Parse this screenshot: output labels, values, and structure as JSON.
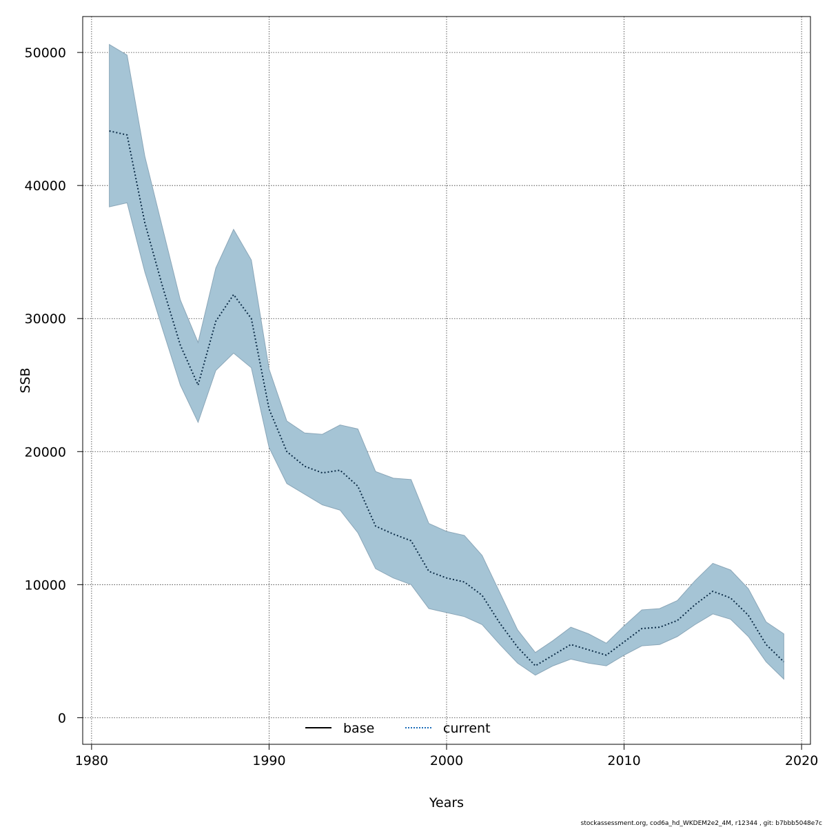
{
  "chart_data": {
    "type": "line",
    "title": "",
    "xlabel": "Years",
    "ylabel": "SSB",
    "xlim": [
      1979.5,
      2020.5
    ],
    "ylim": [
      -2000,
      52700
    ],
    "x_ticks": [
      1980,
      1990,
      2000,
      2010,
      2020
    ],
    "y_ticks": [
      0,
      10000,
      20000,
      30000,
      40000,
      50000
    ],
    "x_tick_labels": [
      "1980",
      "1990",
      "2000",
      "2010",
      "2020"
    ],
    "y_tick_labels": [
      "0",
      "10000",
      "20000",
      "30000",
      "40000",
      "50000"
    ],
    "grid": true,
    "legend_position": "bottom-center",
    "band_color": "#a5c4d5",
    "band_edge_color": "#8aa6b8",
    "years": [
      1981,
      1982,
      1983,
      1984,
      1985,
      1986,
      1987,
      1988,
      1989,
      1990,
      1991,
      1992,
      1993,
      1994,
      1995,
      1996,
      1997,
      1998,
      1999,
      2000,
      2001,
      2002,
      2003,
      2004,
      2005,
      2006,
      2007,
      2008,
      2009,
      2010,
      2011,
      2012,
      2013,
      2014,
      2015,
      2016,
      2017,
      2018,
      2019
    ],
    "band": {
      "upper": [
        50600,
        49800,
        42200,
        36800,
        31400,
        28200,
        33800,
        36700,
        34400,
        26200,
        22300,
        21400,
        21300,
        22000,
        21700,
        18500,
        18000,
        17900,
        14600,
        14000,
        13700,
        12200,
        9400,
        6600,
        4900,
        5800,
        6800,
        6300,
        5600,
        6900,
        8100,
        8200,
        8800,
        10300,
        11600,
        11100,
        9700,
        7200,
        6300
      ],
      "lower": [
        38400,
        38700,
        33500,
        29200,
        25000,
        22200,
        26100,
        27400,
        26300,
        20300,
        17600,
        16800,
        16000,
        15600,
        13900,
        11200,
        10500,
        10000,
        8200,
        7900,
        7600,
        7000,
        5500,
        4100,
        3200,
        3900,
        4400,
        4100,
        3900,
        4700,
        5400,
        5500,
        6100,
        7000,
        7800,
        7400,
        6100,
        4200,
        2900
      ]
    },
    "series": [
      {
        "name": "base",
        "color": "#000000",
        "dash": "solid",
        "values": [
          44100,
          43800,
          37200,
          32400,
          28000,
          25000,
          29800,
          31800,
          30000,
          23200,
          20000,
          18900,
          18400,
          18600,
          17400,
          14400,
          13800,
          13300,
          11000,
          10500,
          10200,
          9200,
          7100,
          5300,
          3900,
          4700,
          5500,
          5100,
          4700,
          5700,
          6700,
          6800,
          7300,
          8500,
          9500,
          9000,
          7700,
          5500,
          4200
        ]
      },
      {
        "name": "current",
        "color": "#1a6bb8",
        "dash": "dotted",
        "values": [
          44100,
          43800,
          37200,
          32400,
          28000,
          25000,
          29800,
          31800,
          30000,
          23200,
          20000,
          18900,
          18400,
          18600,
          17400,
          14400,
          13800,
          13300,
          11000,
          10500,
          10200,
          9200,
          7100,
          5300,
          3900,
          4700,
          5500,
          5100,
          4700,
          5700,
          6700,
          6800,
          7300,
          8500,
          9500,
          9000,
          7700,
          5500,
          4200
        ]
      }
    ],
    "footer_note": "stockassessment.org, cod6a_hd_WKDEM2e2_4M, r12344 , git: b7bbb5048e7c"
  }
}
